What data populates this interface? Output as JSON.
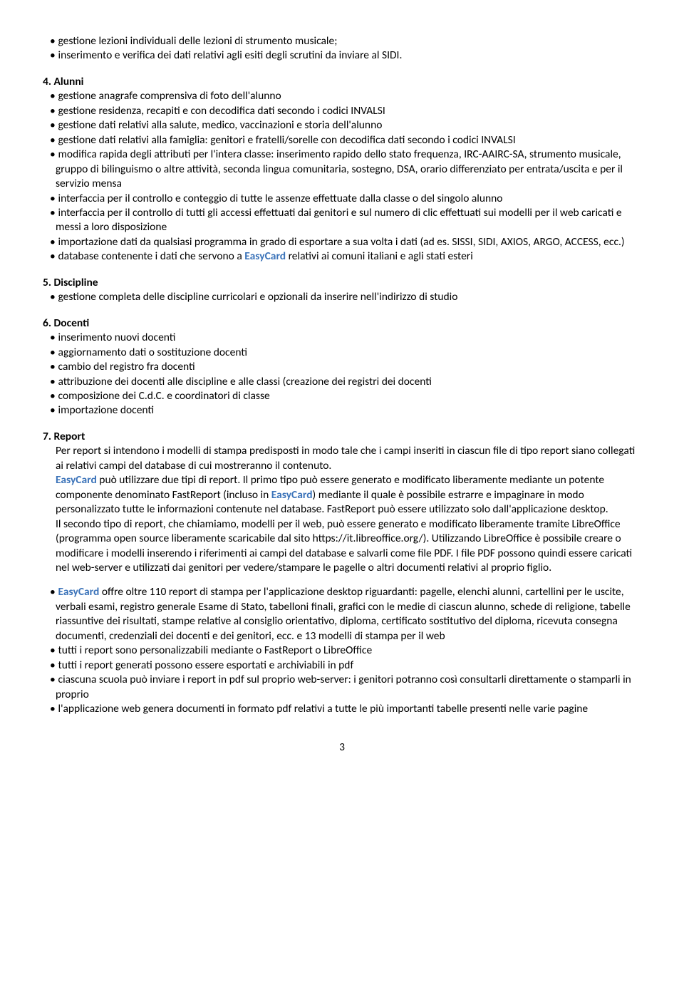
{
  "intro_items": [
    "gestione lezioni individuali delle lezioni di strumento musicale;",
    "inserimento e verifica dei dati relativi agli esiti degli scrutini da inviare al SIDI."
  ],
  "sections": {
    "alunni": {
      "title": "4. Alunni",
      "items": [
        {
          "text": "gestione anagrafe comprensiva di foto dell'alunno"
        },
        {
          "text": "gestione residenza, recapiti e con decodifica dati secondo i codici INVALSI"
        },
        {
          "text": "gestione dati relativi alla salute, medico, vaccinazioni e storia dell'alunno"
        },
        {
          "text": "gestione dati relativi alla famiglia: genitori e fratelli/sorelle con decodifica dati secondo i codici INVALSI"
        },
        {
          "text": "modifica rapida degli attributi per l'intera classe: inserimento rapido dello stato frequenza, IRC-AAIRC-SA, strumento musicale, gruppo di bilinguismo o altre attività, seconda lingua comunitaria, sostegno, DSA, orario differenziato per entrata/uscita e per il servizio mensa"
        },
        {
          "text": "interfaccia per il controllo e conteggio di tutte le assenze effettuate dalla classe o del singolo alunno"
        },
        {
          "text": "interfaccia per il controllo di tutti gli accessi effettuati dai genitori e sul numero di clic effettuati sui modelli per il web caricati e messi a loro disposizione"
        },
        {
          "text": "importazione dati da qualsiasi programma in grado di esportare a sua volta i dati (ad es. SISSI, SIDI, AXIOS, ARGO, ACCESS, ecc.)"
        },
        {
          "pre": "database contenente i dati che servono a ",
          "brand": "EasyCard",
          "post": " relativi ai comuni italiani e agli stati esteri"
        }
      ]
    },
    "discipline": {
      "title": "5. Discipline",
      "items": [
        {
          "text": "gestione completa delle discipline curricolari e opzionali da inserire nell'indirizzo di studio"
        }
      ]
    },
    "docenti": {
      "title": "6. Docenti",
      "items": [
        {
          "text": "inserimento nuovi docenti"
        },
        {
          "text": "aggiornamento dati o sostituzione docenti"
        },
        {
          "text": "cambio del registro fra docenti"
        },
        {
          "text": "attribuzione dei docenti alle discipline e alle classi (creazione dei registri dei docenti"
        },
        {
          "text": "composizione dei C.d.C. e coordinatori di classe"
        },
        {
          "text": "importazione docenti"
        }
      ]
    },
    "report": {
      "title": "7. Report",
      "p1": "Per report si intendono i modelli di stampa predisposti in modo tale che i campi inseriti in ciascun file di tipo report siano collegati ai relativi campi del database di cui mostreranno il contenuto.",
      "p2a": " può utilizzare due tipi di report. Il primo tipo può essere generato e modificato liberamente mediante un potente componente denominato FastReport (incluso in ",
      "p2b": ") mediante il quale è possibile estrarre e impaginare in modo personalizzato tutte le informazioni contenute nel database. FastReport può essere utilizzato solo dall'applicazione desktop.",
      "p3": "Il secondo tipo di report, che chiamiamo, modelli per il web, può essere generato e modificato liberamente tramite LibreOffice (programma open source liberamente scaricabile dal sito https://it.libreoffice.org/). Utilizzando LibreOffice è possibile creare o modificare i modelli inserendo i riferimenti ai campi del database e salvarli come file PDF. I file PDF possono quindi essere caricati nel web-server e utilizzati dai genitori per vedere/stampare le pagelle o altri documenti relativi al proprio figlio.",
      "b1_post": " offre oltre 110 report di stampa per l'applicazione desktop riguardanti: pagelle, elenchi alunni, cartellini per le uscite, verbali esami, registro generale Esame di Stato, tabelloni finali, grafici con le medie di ciascun alunno, schede di religione, tabelle riassuntive dei risultati, stampe relative al consiglio orientativo, diploma, certificato sostitutivo del diploma, ricevuta consegna documenti, credenziali dei docenti e dei genitori, ecc. e 13 modelli di stampa per il web",
      "bullets_rest": [
        "tutti i report sono personalizzabili mediante o FastReport o LibreOffice",
        "tutti i report generati possono essere esportati e archiviabili in pdf",
        "ciascuna scuola può inviare i report in pdf sul proprio web-server: i genitori potranno così consultarli direttamente o stamparli in proprio",
        "l'applicazione web genera documenti in formato pdf relativi a tutte le più importanti tabelle presenti nelle varie pagine"
      ]
    }
  },
  "brand": "EasyCard",
  "pageNumber": "3"
}
